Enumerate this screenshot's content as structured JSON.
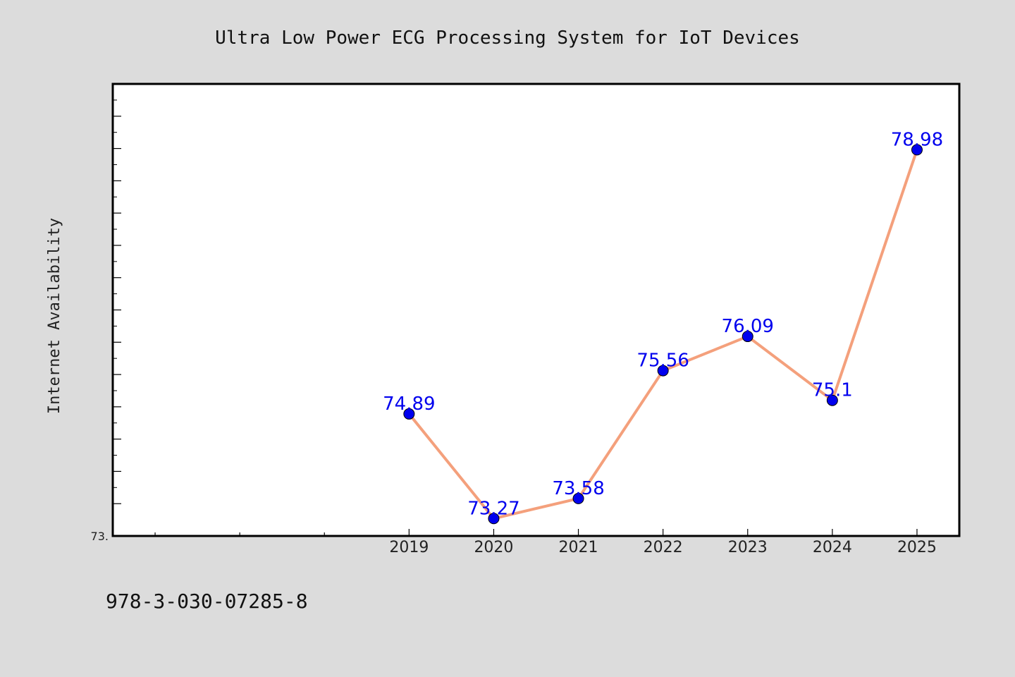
{
  "chart_data": {
    "type": "line",
    "title": "Ultra Low Power ECG Processing System for IoT Devices",
    "xlabel": "",
    "ylabel": "Internet Availability",
    "categories": [
      "2019",
      "2020",
      "2021",
      "2022",
      "2023",
      "2024",
      "2025"
    ],
    "x_axis_slots": 10,
    "x_axis_first_slot": 3,
    "series": [
      {
        "values": [
          74.89,
          73.27,
          73.58,
          75.56,
          76.09,
          75.1,
          78.98
        ],
        "labels": [
          "74.89",
          "73.27",
          "73.58",
          "75.56",
          "76.09",
          "75.1",
          "78.98"
        ],
        "line_color": "#f4a07c",
        "marker_color": "#0000ee",
        "label_color": "#0000ee"
      }
    ],
    "ylim": [
      73.0,
      80.0
    ],
    "y_tick_labels": [
      "73."
    ],
    "y_minor_step": 0.5,
    "grid": false,
    "legend": "none"
  },
  "footer": {
    "isbn": "978-3-030-07285-8"
  },
  "colors": {
    "background": "#dcdcdc",
    "plot_background": "#ffffff",
    "axis": "#000000"
  }
}
